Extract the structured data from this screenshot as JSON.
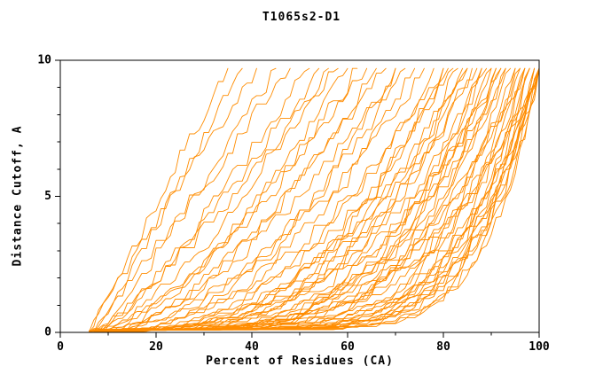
{
  "chart_data": {
    "type": "line",
    "title": "T1065s2-D1",
    "xlabel": "Percent of Residues (CA)",
    "ylabel": "Distance Cutoff, A",
    "xlim": [
      0,
      100
    ],
    "ylim": [
      0,
      10
    ],
    "x_major_ticks": [
      0,
      20,
      40,
      60,
      80,
      100
    ],
    "x_minor_step": 10,
    "y_major_ticks": [
      0,
      5,
      10
    ],
    "y_minor_step": 1,
    "grid": false,
    "legend": "none",
    "background": "#FFFFFF",
    "axis_color": "#000000",
    "line_color": "#FF8C00",
    "y_top_cap": 9.7,
    "series_model": "Each model curve is monotone increasing: y = ymax*((x-s)/(e-s))^p with small monotone jitter; s = percent where curve leaves 0, e = percent where curve reaches top of plot (ymax = 9.7 A).",
    "curves": [
      {
        "s": 6,
        "e": 35,
        "p": 1.0
      },
      {
        "s": 7,
        "e": 38,
        "p": 1.05
      },
      {
        "s": 6,
        "e": 41,
        "p": 0.95
      },
      {
        "s": 8,
        "e": 45,
        "p": 1.1
      },
      {
        "s": 7,
        "e": 48,
        "p": 1.0
      },
      {
        "s": 9,
        "e": 52,
        "p": 1.15
      },
      {
        "s": 6,
        "e": 54,
        "p": 1.3
      },
      {
        "s": 8,
        "e": 56,
        "p": 1.4
      },
      {
        "s": 7,
        "e": 58,
        "p": 1.2
      },
      {
        "s": 10,
        "e": 60,
        "p": 1.5
      },
      {
        "s": 6,
        "e": 62,
        "p": 1.6
      },
      {
        "s": 9,
        "e": 64,
        "p": 1.4
      },
      {
        "s": 7,
        "e": 66,
        "p": 1.8
      },
      {
        "s": 11,
        "e": 68,
        "p": 1.5
      },
      {
        "s": 8,
        "e": 70,
        "p": 1.7
      },
      {
        "s": 12,
        "e": 70,
        "p": 2.0
      },
      {
        "s": 6,
        "e": 72,
        "p": 2.0
      },
      {
        "s": 9,
        "e": 74,
        "p": 2.2
      },
      {
        "s": 7,
        "e": 76,
        "p": 1.9
      },
      {
        "s": 10,
        "e": 78,
        "p": 2.4
      },
      {
        "s": 8,
        "e": 80,
        "p": 2.1
      },
      {
        "s": 12,
        "e": 80,
        "p": 2.6
      },
      {
        "s": 6,
        "e": 81,
        "p": 2.8
      },
      {
        "s": 9,
        "e": 82,
        "p": 2.3
      },
      {
        "s": 11,
        "e": 83,
        "p": 2.7
      },
      {
        "s": 7,
        "e": 84,
        "p": 3.0
      },
      {
        "s": 10,
        "e": 85,
        "p": 2.5
      },
      {
        "s": 13,
        "e": 85,
        "p": 2.9
      },
      {
        "s": 6,
        "e": 86,
        "p": 3.2
      },
      {
        "s": 8,
        "e": 87,
        "p": 2.8
      },
      {
        "s": 10,
        "e": 88,
        "p": 3.5
      },
      {
        "s": 7,
        "e": 88,
        "p": 4.0
      },
      {
        "s": 9,
        "e": 89,
        "p": 3.0
      },
      {
        "s": 11,
        "e": 90,
        "p": 3.8
      },
      {
        "s": 6,
        "e": 90,
        "p": 4.2
      },
      {
        "s": 8,
        "e": 91,
        "p": 3.3
      },
      {
        "s": 12,
        "e": 91,
        "p": 4.5
      },
      {
        "s": 7,
        "e": 92,
        "p": 3.6
      },
      {
        "s": 10,
        "e": 92,
        "p": 2.9
      },
      {
        "s": 9,
        "e": 93,
        "p": 4.0
      },
      {
        "s": 13,
        "e": 93,
        "p": 3.4
      },
      {
        "s": 8,
        "e": 94,
        "p": 4.3
      },
      {
        "s": 6,
        "e": 95,
        "p": 4.8
      },
      {
        "s": 9,
        "e": 95,
        "p": 5.5
      },
      {
        "s": 7,
        "e": 96,
        "p": 4.2
      },
      {
        "s": 11,
        "e": 96,
        "p": 6.0
      },
      {
        "s": 8,
        "e": 97,
        "p": 5.0
      },
      {
        "s": 10,
        "e": 97,
        "p": 6.5
      },
      {
        "s": 6,
        "e": 97,
        "p": 3.8
      },
      {
        "s": 12,
        "e": 98,
        "p": 5.8
      },
      {
        "s": 7,
        "e": 98,
        "p": 7.0
      },
      {
        "s": 9,
        "e": 98,
        "p": 4.5
      },
      {
        "s": 11,
        "e": 99,
        "p": 6.2
      },
      {
        "s": 8,
        "e": 99,
        "p": 5.2
      },
      {
        "s": 13,
        "e": 99,
        "p": 7.5
      },
      {
        "s": 6,
        "e": 100,
        "p": 4.0
      },
      {
        "s": 10,
        "e": 100,
        "p": 5.5
      },
      {
        "s": 7,
        "e": 100,
        "p": 6.8
      },
      {
        "s": 12,
        "e": 100,
        "p": 7.8
      },
      {
        "s": 9,
        "e": 100,
        "p": 5.0
      },
      {
        "s": 14,
        "e": 100,
        "p": 6.4
      },
      {
        "s": 8,
        "e": 100,
        "p": 7.2
      },
      {
        "s": 11,
        "e": 100,
        "p": 8.0
      },
      {
        "s": 15,
        "e": 100,
        "p": 5.9
      }
    ]
  }
}
